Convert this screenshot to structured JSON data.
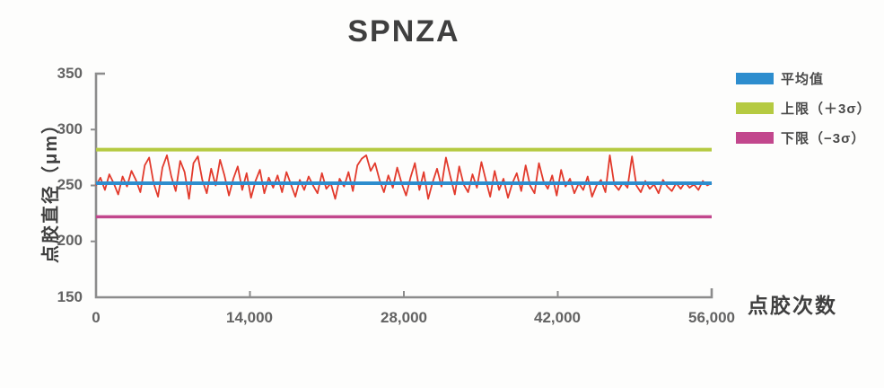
{
  "title": "SPNZA",
  "y_axis": {
    "label": "点胶直径（μm）",
    "ticks": [
      "350",
      "300",
      "250",
      "200",
      "150"
    ]
  },
  "x_axis": {
    "label": "点胶次数",
    "ticks": [
      "0",
      "14,000",
      "28,000",
      "42,000",
      "56,000"
    ]
  },
  "legend": {
    "items": [
      {
        "label": "平均值",
        "color": "#2d8dce"
      },
      {
        "label": "上限（＋3σ）",
        "color": "#b5ca41"
      },
      {
        "label": "下限（−3σ）",
        "color": "#c2478d"
      }
    ]
  },
  "chart_data": {
    "type": "line",
    "title": "SPNZA",
    "xlabel": "点胶次数",
    "ylabel": "点胶直径（μm）",
    "xlim": [
      0,
      56000
    ],
    "ylim": [
      150,
      350
    ],
    "x_ticks": [
      0,
      14000,
      28000,
      42000,
      56000
    ],
    "y_ticks": [
      150,
      200,
      250,
      300,
      350
    ],
    "grid": false,
    "legend_position": "right",
    "mean_line": {
      "name": "平均值",
      "value": 252,
      "color": "#2d8dce"
    },
    "upper_limit_line": {
      "name": "上限（＋3σ）",
      "value": 282,
      "color": "#b5ca41"
    },
    "lower_limit_line": {
      "name": "下限（−3σ）",
      "value": 222,
      "color": "#c2478d"
    },
    "series": [
      {
        "name": "点胶直径",
        "color": "#e23a2c",
        "x_start": 0,
        "x_end": 56000,
        "values": [
          250,
          257,
          246,
          260,
          252,
          242,
          258,
          249,
          263,
          255,
          244,
          268,
          275,
          252,
          240,
          266,
          277,
          258,
          245,
          272,
          262,
          238,
          270,
          276,
          255,
          243,
          265,
          250,
          273,
          259,
          241,
          256,
          267,
          246,
          261,
          239,
          254,
          264,
          243,
          257,
          248,
          259,
          244,
          262,
          251,
          240,
          255,
          246,
          258,
          250,
          243,
          261,
          247,
          252,
          238,
          256,
          249,
          262,
          245,
          268,
          274,
          277,
          263,
          270,
          255,
          244,
          259,
          248,
          266,
          252,
          241,
          257,
          270,
          246,
          262,
          238,
          253,
          265,
          249,
          275,
          258,
          242,
          267,
          251,
          244,
          260,
          248,
          271,
          255,
          240,
          263,
          246,
          256,
          239,
          252,
          261,
          245,
          268,
          250,
          243,
          270,
          254,
          247,
          259,
          241,
          264,
          249,
          256,
          243,
          252,
          246,
          258,
          240,
          250,
          255,
          244,
          277,
          251,
          246,
          253,
          248,
          276,
          250,
          244,
          254,
          247,
          251,
          243,
          255,
          249,
          245,
          252,
          247,
          253,
          248,
          251,
          246,
          254,
          250,
          252
        ]
      }
    ]
  }
}
